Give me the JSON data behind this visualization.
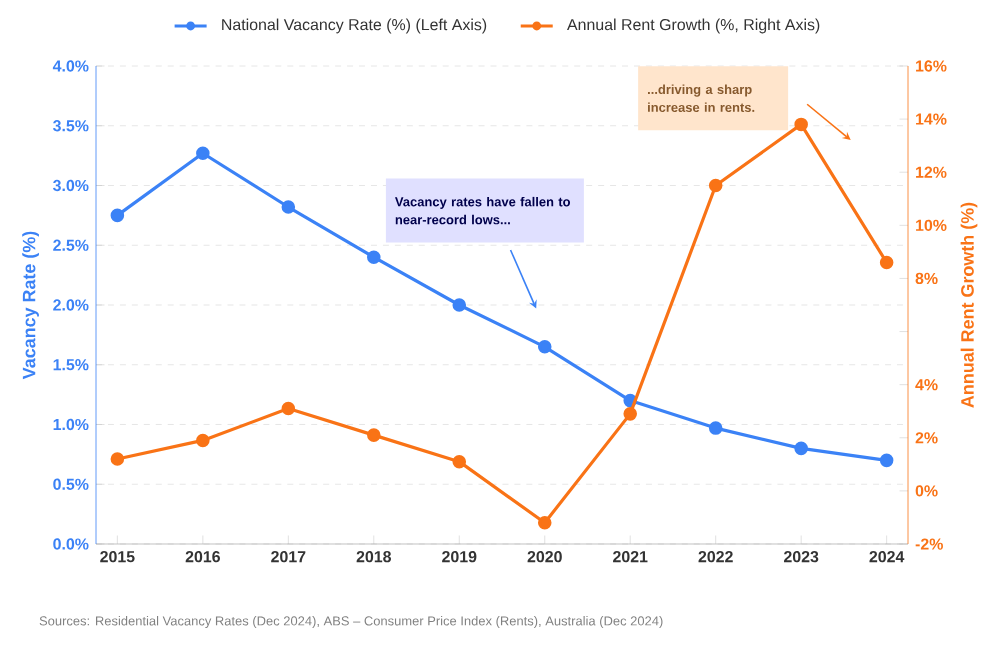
{
  "chart_data": {
    "type": "line",
    "x": [
      2015,
      2016,
      2017,
      2018,
      2019,
      2020,
      2021,
      2022,
      2023,
      2024
    ],
    "xlim": [
      2014.75,
      2024.25
    ],
    "xticks": [
      2015,
      2016,
      2017,
      2018,
      2019,
      2020,
      2021,
      2022,
      2023,
      2024
    ],
    "ylabel": "Vacancy Rate (%)",
    "y2label": "Annual Rent Growth (%)",
    "ylim": [
      0,
      4
    ],
    "yticks": [
      {
        "value": 0,
        "label": "0.0%"
      },
      {
        "value": 0.5,
        "label": "0.5%"
      },
      {
        "value": 1,
        "label": "1.0%"
      },
      {
        "value": 1.5,
        "label": "1.5%"
      },
      {
        "value": 2,
        "label": "2.0%"
      },
      {
        "value": 2.5,
        "label": "2.5%"
      },
      {
        "value": 3,
        "label": "3.0%"
      },
      {
        "value": 3.5,
        "label": "3.5%"
      },
      {
        "value": 4,
        "label": "4.0%"
      }
    ],
    "y2lim": [
      -2,
      16
    ],
    "y2ticks": [
      {
        "value": -2,
        "label": "-2%"
      },
      {
        "value": 0,
        "label": "0%"
      },
      {
        "value": 2,
        "label": "2%"
      },
      {
        "value": 4,
        "label": "4%"
      },
      {
        "value": 6,
        "label": null
      },
      {
        "value": 8,
        "label": "8%"
      },
      {
        "value": 10,
        "label": "10%"
      },
      {
        "value": 12,
        "label": "12%"
      },
      {
        "value": 14,
        "label": "14%"
      },
      {
        "value": 16,
        "label": "16%"
      }
    ],
    "series": [
      {
        "name": "National Vacancy Rate (%) (Left Axis)",
        "color": "#3b82f6",
        "values": [
          2.75,
          3.27,
          2.82,
          2.4,
          2.0,
          1.65,
          1.2,
          0.97,
          0.8,
          0.7
        ]
      },
      {
        "name": "Annual Rent Growth (%, Right Axis)",
        "color": "#f97316",
        "axis": "y2",
        "values": [
          1.2,
          1.9,
          3.1,
          2.1,
          1.1,
          -1.2,
          2.9,
          11.5,
          13.8,
          8.6
        ]
      }
    ],
    "annotations": [
      "Vacancy rates have fallen to near-record lows...",
      "...driving a sharp increase in rents.",
      "Sources: Residential Vacancy Rates (Dec 2024), ABS – Consumer Price Index (Rents), Australia (Dec 2024)"
    ],
    "grid": "y",
    "legend": "top",
    "marker": "circle",
    "line_style": "solid"
  }
}
